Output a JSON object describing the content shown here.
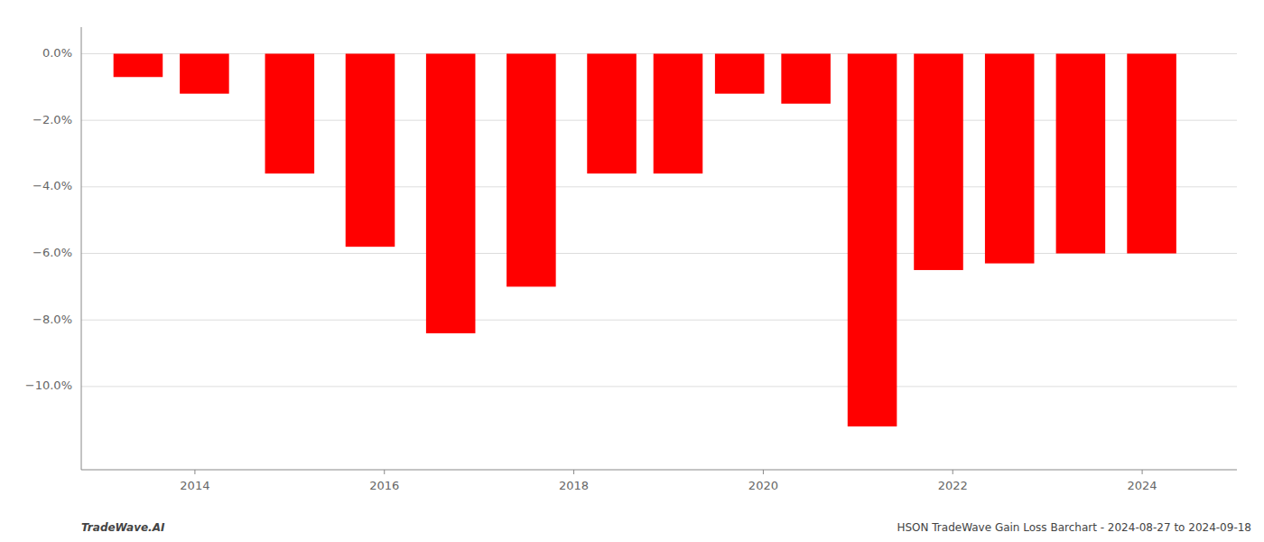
{
  "chart_data": {
    "type": "bar",
    "x": [
      2013.4,
      2014.1,
      2015.0,
      2015.85,
      2016.7,
      2017.55,
      2018.4,
      2019.1,
      2019.75,
      2020.45,
      2021.15,
      2021.85,
      2022.6,
      2023.35,
      2024.1
    ],
    "values": [
      -0.7,
      -1.2,
      -3.6,
      -5.8,
      -8.4,
      -7.0,
      -3.6,
      -3.6,
      -1.2,
      -1.5,
      -11.2,
      -6.5,
      -6.3,
      -6.0,
      -6.0
    ],
    "color": "#ff0000",
    "xlim": [
      2012.8,
      2025.0
    ],
    "xticks": [
      2014,
      2016,
      2018,
      2020,
      2022,
      2024
    ],
    "ylim": [
      -12.5,
      0.8
    ],
    "yticks": [
      {
        "value": 0.0,
        "label": "0.0%"
      },
      {
        "value": -2.0,
        "label": "−2.0%"
      },
      {
        "value": -4.0,
        "label": "−4.0%"
      },
      {
        "value": -6.0,
        "label": "−6.0%"
      },
      {
        "value": -8.0,
        "label": "−8.0%"
      },
      {
        "value": -10.0,
        "label": "−10.0%"
      }
    ],
    "grid": true,
    "annotations": [
      "TradeWave.AI",
      "HSON TradeWave Gain Loss Barchart - 2024-08-27 to 2024-09-18"
    ]
  }
}
